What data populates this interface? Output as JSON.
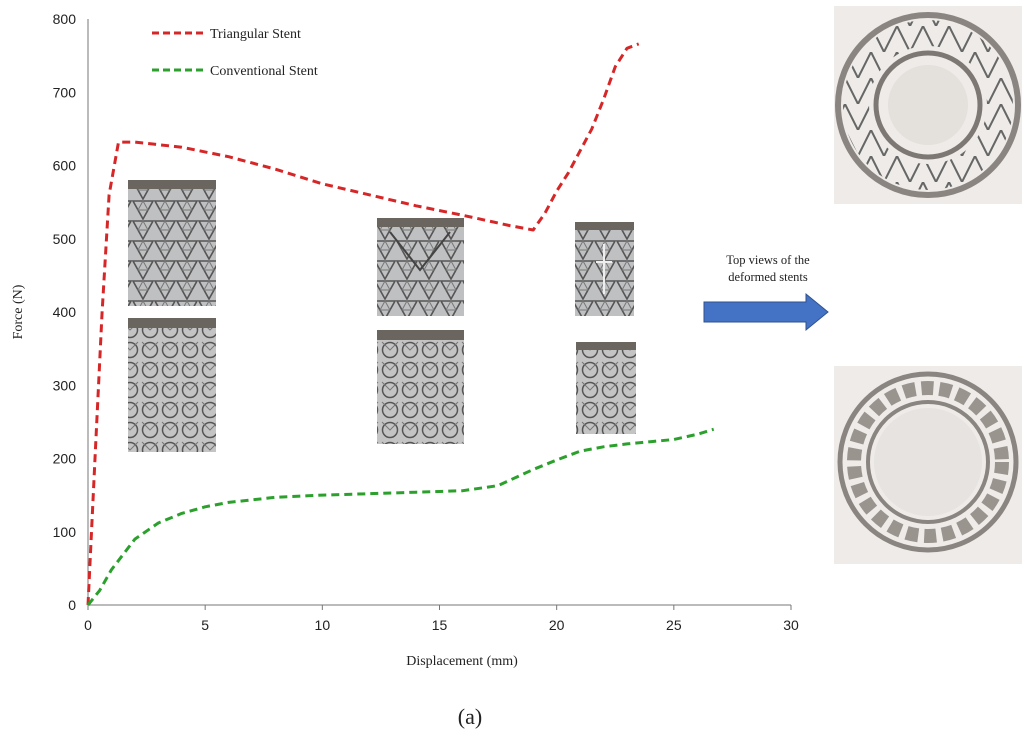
{
  "chart_data": {
    "type": "line",
    "xlabel": "Displacement (mm)",
    "ylabel": "Force (N)",
    "xlim": [
      0,
      30
    ],
    "ylim": [
      0,
      800
    ],
    "xticks": [
      0,
      5,
      10,
      15,
      20,
      25,
      30
    ],
    "yticks": [
      0,
      100,
      200,
      300,
      400,
      500,
      600,
      700,
      800
    ],
    "grid": false,
    "legend_position": "top-left",
    "series": [
      {
        "name": "Triangular Stent",
        "color": "#d62728",
        "style": "dashed",
        "x": [
          0,
          0.3,
          0.6,
          0.9,
          1.3,
          2,
          4,
          6,
          8,
          10,
          12,
          14,
          16,
          18,
          19,
          19.5,
          20,
          20.5,
          21,
          21.5,
          22,
          22.5,
          23,
          23.5
        ],
        "y": [
          0,
          200,
          400,
          560,
          632,
          632,
          625,
          612,
          595,
          575,
          560,
          545,
          532,
          518,
          512,
          535,
          565,
          590,
          620,
          650,
          690,
          735,
          760,
          766
        ]
      },
      {
        "name": "Conventional Stent",
        "color": "#2ca02c",
        "style": "dashed",
        "x": [
          0,
          0.5,
          1,
          2,
          3,
          4,
          5,
          6,
          8,
          10,
          12,
          14,
          16,
          17.5,
          19,
          20,
          21,
          22,
          23,
          24,
          25,
          26,
          26.7
        ],
        "y": [
          0,
          20,
          48,
          90,
          112,
          125,
          134,
          140,
          147,
          150,
          152,
          154,
          156,
          163,
          185,
          198,
          210,
          216,
          220,
          223,
          226,
          233,
          240
        ]
      }
    ]
  },
  "annotation": {
    "line1": "Top views of the",
    "line2": "deformed stents",
    "arrow_color": "#4472c4"
  },
  "caption": "(a)"
}
